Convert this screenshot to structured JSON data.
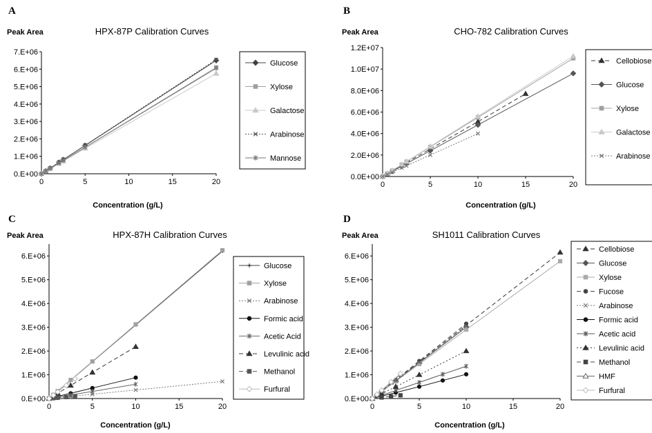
{
  "chart_data": [
    {
      "panel": "A",
      "type": "line",
      "title": "HPX-87P Calibration Curves",
      "ylabel": "Peak Area",
      "xlabel": "Concentration (g/L)",
      "xlim": [
        0,
        20
      ],
      "ylim": [
        0,
        7000000
      ],
      "xticks": [
        0,
        5,
        10,
        15,
        20
      ],
      "xtick_labels": [
        "0",
        "5",
        "10",
        "15",
        "20"
      ],
      "yticks": [
        0,
        1000000,
        2000000,
        3000000,
        4000000,
        5000000,
        6000000,
        7000000
      ],
      "ytick_labels": [
        "0.E+00",
        "1.E+06",
        "2.E+06",
        "3.E+06",
        "4.E+06",
        "5.E+06",
        "6.E+06",
        "7.E+06"
      ],
      "legend": "right",
      "series": [
        {
          "name": "Glucose",
          "x": [
            0,
            0.5,
            1,
            2,
            2.5,
            5,
            20
          ],
          "y": [
            0,
            160000,
            320000,
            650000,
            810000,
            1620000,
            6500000
          ],
          "color": "#404040",
          "dash": "",
          "marker": "diamond"
        },
        {
          "name": "Xylose",
          "x": [
            0,
            0.5,
            1,
            2,
            2.5,
            5,
            20
          ],
          "y": [
            0,
            150000,
            300000,
            610000,
            760000,
            1520000,
            6100000
          ],
          "color": "#a0a0a0",
          "dash": "",
          "marker": "square"
        },
        {
          "name": "Galactose",
          "x": [
            0,
            0.5,
            1,
            2,
            2.5,
            5,
            20
          ],
          "y": [
            0,
            140000,
            290000,
            580000,
            720000,
            1450000,
            5750000
          ],
          "color": "#c8c8c8",
          "dash": "",
          "marker": "triangle"
        },
        {
          "name": "Arabinose",
          "x": [
            0,
            0.5,
            1,
            2,
            2.5,
            5,
            20
          ],
          "y": [
            0,
            165000,
            330000,
            660000,
            820000,
            1640000,
            6550000
          ],
          "color": "#555555",
          "dash": "2,2",
          "marker": "x"
        },
        {
          "name": "Mannose",
          "x": [
            0,
            0.5,
            1,
            2,
            2.5,
            5,
            20
          ],
          "y": [
            0,
            150000,
            300000,
            610000,
            760000,
            1520000,
            6050000
          ],
          "color": "#777777",
          "dash": "",
          "marker": "star"
        }
      ]
    },
    {
      "panel": "B",
      "type": "line",
      "title": "CHO-782 Calibration Curves",
      "ylabel": "Peak Area",
      "xlabel": "Concentration (g/L)",
      "xlim": [
        0,
        20
      ],
      "ylim": [
        0,
        12000000
      ],
      "xticks": [
        0,
        5,
        10,
        15,
        20
      ],
      "xtick_labels": [
        "0",
        "5",
        "10",
        "15",
        "20"
      ],
      "yticks": [
        0,
        2000000,
        4000000,
        6000000,
        8000000,
        10000000,
        12000000
      ],
      "ytick_labels": [
        "0.0E+00",
        "2.0E+06",
        "4.0E+06",
        "6.0E+06",
        "8.0E+06",
        "1.0E+07",
        "1.2E+07"
      ],
      "legend": "right",
      "series": [
        {
          "name": "Cellobiose",
          "x": [
            0,
            0.5,
            1,
            2,
            2.5,
            5,
            10,
            15
          ],
          "y": [
            0,
            260000,
            520000,
            1030000,
            1290000,
            2570000,
            5100000,
            7700000
          ],
          "color": "#333333",
          "dash": "6,4",
          "marker": "triangle"
        },
        {
          "name": "Glucose",
          "x": [
            0,
            0.5,
            1,
            2,
            2.5,
            5,
            10,
            20
          ],
          "y": [
            0,
            240000,
            480000,
            960000,
            1200000,
            2400000,
            4800000,
            9600000
          ],
          "color": "#555555",
          "dash": "",
          "marker": "diamond"
        },
        {
          "name": "Xylose",
          "x": [
            0,
            0.5,
            1,
            2,
            2.5,
            5,
            10,
            20
          ],
          "y": [
            0,
            275000,
            550000,
            1100000,
            1375000,
            2750000,
            5500000,
            11000000
          ],
          "color": "#a0a0a0",
          "dash": "",
          "marker": "square"
        },
        {
          "name": "Galactose",
          "x": [
            0,
            0.5,
            1,
            2,
            2.5,
            5,
            10,
            20
          ],
          "y": [
            0,
            280000,
            560000,
            1120000,
            1400000,
            2800000,
            5600000,
            11200000
          ],
          "color": "#c8c8c8",
          "dash": "",
          "marker": "triangle"
        },
        {
          "name": "Arabinose",
          "x": [
            0,
            0.5,
            1,
            2,
            2.5,
            5,
            10
          ],
          "y": [
            0,
            200000,
            400000,
            800000,
            1000000,
            2000000,
            4000000
          ],
          "color": "#777777",
          "dash": "2,2",
          "marker": "x"
        }
      ]
    },
    {
      "panel": "C",
      "type": "line",
      "title": "HPX-87H Calibration Curves",
      "ylabel": "Peak Area",
      "xlabel": "Concentration (g/L)",
      "xlim": [
        0,
        20
      ],
      "ylim": [
        0,
        6500000
      ],
      "xticks": [
        0,
        5,
        10,
        15,
        20
      ],
      "xtick_labels": [
        "0",
        "5",
        "10",
        "15",
        "20"
      ],
      "yticks": [
        0,
        1000000,
        2000000,
        3000000,
        4000000,
        5000000,
        6000000
      ],
      "ytick_labels": [
        "0.E+00",
        "1.E+06",
        "2.E+06",
        "3.E+06",
        "4.E+06",
        "5.E+06",
        "6.E+06"
      ],
      "legend": "right",
      "series": [
        {
          "name": "Glucose",
          "x": [
            0,
            0.5,
            1,
            2.5,
            5,
            10,
            20
          ],
          "y": [
            0,
            155000,
            310000,
            775000,
            1550000,
            3100000,
            6200000
          ],
          "color": "#404040",
          "dash": "",
          "marker": "plus"
        },
        {
          "name": "Xylose",
          "x": [
            0,
            0.5,
            1,
            2.5,
            5,
            10,
            20
          ],
          "y": [
            0,
            156000,
            312000,
            780000,
            1560000,
            3120000,
            6240000
          ],
          "color": "#a0a0a0",
          "dash": "",
          "marker": "square"
        },
        {
          "name": "Arabinose",
          "x": [
            0,
            0.5,
            1,
            2.5,
            5,
            10,
            20
          ],
          "y": [
            0,
            18000,
            36000,
            90000,
            180000,
            360000,
            720000
          ],
          "color": "#777777",
          "dash": "2,2",
          "marker": "x"
        },
        {
          "name": "Formic acid",
          "x": [
            0,
            0.5,
            1,
            2.5,
            5,
            10
          ],
          "y": [
            0,
            45000,
            90000,
            220000,
            440000,
            880000
          ],
          "color": "#111111",
          "dash": "",
          "marker": "circle"
        },
        {
          "name": "Acetic Acid",
          "x": [
            0,
            0.5,
            1,
            2.5,
            5,
            10
          ],
          "y": [
            0,
            30000,
            60000,
            150000,
            300000,
            600000
          ],
          "color": "#666666",
          "dash": "",
          "marker": "star"
        },
        {
          "name": "Levulinic acid",
          "x": [
            0,
            0.5,
            1,
            2.5,
            5,
            10
          ],
          "y": [
            0,
            110000,
            220000,
            550000,
            1100000,
            2180000
          ],
          "color": "#333333",
          "dash": "6,4",
          "marker": "triangle"
        },
        {
          "name": "Methanol",
          "x": [
            0,
            0.5,
            1,
            2,
            3
          ],
          "y": [
            0,
            15000,
            30000,
            60000,
            95000
          ],
          "color": "#555555",
          "dash": "6,4",
          "marker": "square"
        },
        {
          "name": "Furfural",
          "x": [
            0,
            0.5,
            1,
            2,
            3
          ],
          "y": [
            0,
            140000,
            280000,
            550000,
            830000
          ],
          "color": "#bbbbbb",
          "dash": "",
          "marker": "diamond-open"
        }
      ]
    },
    {
      "panel": "D",
      "type": "line",
      "title": "SH1011 Calibration Curves",
      "ylabel": "Peak Area",
      "xlabel": "Concentration (g/L)",
      "xlim": [
        0,
        20
      ],
      "ylim": [
        0,
        6500000
      ],
      "xticks": [
        0,
        5,
        10,
        15,
        20
      ],
      "xtick_labels": [
        "0",
        "5",
        "10",
        "15",
        "20"
      ],
      "yticks": [
        0,
        1000000,
        2000000,
        3000000,
        4000000,
        5000000,
        6000000
      ],
      "ytick_labels": [
        "0.E+00",
        "1.E+06",
        "2.E+06",
        "3.E+06",
        "4.E+06",
        "5.E+06",
        "6.E+06"
      ],
      "legend": "right",
      "series": [
        {
          "name": "Cellobiose",
          "x": [
            0,
            0.5,
            1,
            2.5,
            5,
            10,
            20
          ],
          "y": [
            0,
            155000,
            310000,
            770000,
            1540000,
            3080000,
            6150000
          ],
          "color": "#333333",
          "dash": "6,4",
          "marker": "triangle"
        },
        {
          "name": "Glucose",
          "x": [
            0,
            0.5,
            1,
            2.5,
            5,
            10
          ],
          "y": [
            0,
            150000,
            300000,
            750000,
            1500000,
            3000000
          ],
          "color": "#555555",
          "dash": "",
          "marker": "diamond"
        },
        {
          "name": "Xylose",
          "x": [
            0,
            0.5,
            1,
            2.5,
            5,
            10,
            20
          ],
          "y": [
            0,
            145000,
            290000,
            725000,
            1450000,
            2900000,
            5780000
          ],
          "color": "#aaaaaa",
          "dash": "",
          "marker": "square"
        },
        {
          "name": "Fucose",
          "x": [
            0,
            0.5,
            1,
            2.5,
            5,
            10
          ],
          "y": [
            0,
            158000,
            316000,
            790000,
            1580000,
            3150000
          ],
          "color": "#444444",
          "dash": "6,4",
          "marker": "circle"
        },
        {
          "name": "Arabinose",
          "x": [
            0,
            0.5,
            1,
            2.5,
            5,
            10
          ],
          "y": [
            0,
            152000,
            305000,
            760000,
            1520000,
            3040000
          ],
          "color": "#777777",
          "dash": "2,2",
          "marker": "x"
        },
        {
          "name": "Formic acid",
          "x": [
            0,
            1,
            2.5,
            5,
            7.5,
            10
          ],
          "y": [
            0,
            100000,
            250000,
            500000,
            760000,
            1020000
          ],
          "color": "#111111",
          "dash": "",
          "marker": "circle"
        },
        {
          "name": "Acetic acid",
          "x": [
            0,
            1,
            2.5,
            5,
            7.5,
            10
          ],
          "y": [
            0,
            135000,
            340000,
            680000,
            1020000,
            1360000
          ],
          "color": "#555555",
          "dash": "",
          "marker": "star"
        },
        {
          "name": "Levulinic acid",
          "x": [
            0,
            1,
            2.5,
            5,
            10
          ],
          "y": [
            0,
            200000,
            500000,
            1000000,
            2000000
          ],
          "color": "#333333",
          "dash": "2,3",
          "marker": "triangle"
        },
        {
          "name": "Methanol",
          "x": [
            0,
            1,
            2,
            3
          ],
          "y": [
            0,
            45000,
            90000,
            135000
          ],
          "color": "#444444",
          "dash": "6,4",
          "marker": "square"
        },
        {
          "name": "HMF",
          "x": [
            0,
            0.5,
            1,
            2,
            3
          ],
          "y": [
            0,
            170000,
            340000,
            680000,
            1020000
          ],
          "color": "#666666",
          "dash": "",
          "marker": "triangle-open"
        },
        {
          "name": "Furfural",
          "x": [
            0,
            0.5,
            1,
            2,
            3
          ],
          "y": [
            0,
            175000,
            350000,
            700000,
            1050000
          ],
          "color": "#bbbbbb",
          "dash": "",
          "marker": "diamond-open"
        }
      ]
    }
  ]
}
